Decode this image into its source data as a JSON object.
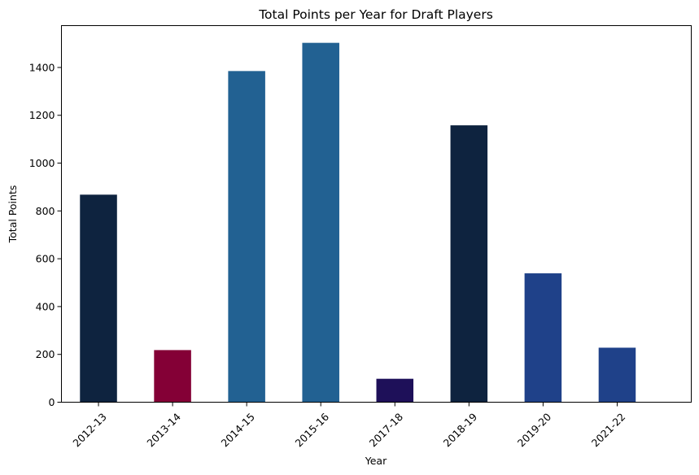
{
  "chart_data": {
    "type": "bar",
    "title": "Total Points per Year for Draft Players",
    "xlabel": "Year",
    "ylabel": "Total Points",
    "categories": [
      "2012-13",
      "2013-14",
      "2014-15",
      "2015-16",
      "2017-18",
      "2018-19",
      "2019-20",
      "2021-22"
    ],
    "values": [
      868,
      218,
      1385,
      1503,
      98,
      1158,
      539,
      228
    ],
    "colors": [
      "#0e233f",
      "#840036",
      "#226192",
      "#226192",
      "#1e1059",
      "#0e233f",
      "#1f4189",
      "#1f4189"
    ],
    "ylim": [
      0,
      1575
    ],
    "yticks": [
      0,
      200,
      400,
      600,
      800,
      1000,
      1200,
      1400
    ],
    "grid": false,
    "legend": "none"
  }
}
